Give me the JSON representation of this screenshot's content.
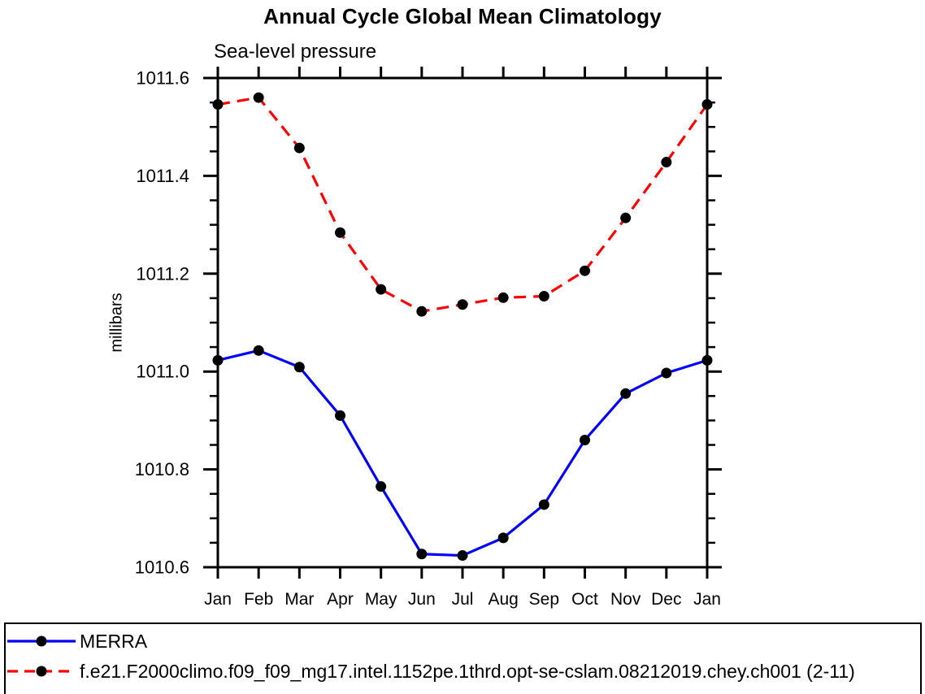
{
  "page": {
    "background": "#ffffff",
    "axis_color": "#000000"
  },
  "chart_data": {
    "type": "line",
    "title": "Annual Cycle Global Mean Climatology",
    "subtitle": "Sea-level pressure",
    "ylabel": "millibars",
    "categories": [
      "Jan",
      "Feb",
      "Mar",
      "Apr",
      "May",
      "Jun",
      "Jul",
      "Aug",
      "Sep",
      "Oct",
      "Nov",
      "Dec",
      "Jan"
    ],
    "ylim": [
      1010.6,
      1011.6
    ],
    "yticks": [
      {
        "value": 1010.6,
        "label": "1010.6"
      },
      {
        "value": 1010.8,
        "label": "1010.8"
      },
      {
        "value": 1011.0,
        "label": "1011.0"
      },
      {
        "value": 1011.2,
        "label": "1011.2"
      },
      {
        "value": 1011.4,
        "label": "1011.4"
      },
      {
        "value": 1011.6,
        "label": "1011.6"
      }
    ],
    "ytick_minor_step": 0.05,
    "grid": false,
    "legend_position": "bottom-left-box",
    "series": [
      {
        "name": "MERRA",
        "line_color": "#0000ff",
        "line_style": "solid",
        "marker": "filled-circle",
        "marker_color": "#000000",
        "values": [
          1011.023,
          1011.043,
          1011.009,
          1010.91,
          1010.765,
          1010.627,
          1010.624,
          1010.66,
          1010.728,
          1010.86,
          1010.955,
          1010.997,
          1011.023
        ]
      },
      {
        "name": "f.e21.F2000climo.f09_f09_mg17.intel.1152pe.1thrd.opt-se-cslam.08212019.chey.ch001 (2-11)",
        "line_color": "#ff0000",
        "line_style": "dashed",
        "marker": "filled-circle",
        "marker_color": "#000000",
        "values": [
          1011.546,
          1011.56,
          1011.457,
          1011.284,
          1011.168,
          1011.123,
          1011.137,
          1011.151,
          1011.154,
          1011.206,
          1011.314,
          1011.428,
          1011.546
        ]
      }
    ]
  }
}
